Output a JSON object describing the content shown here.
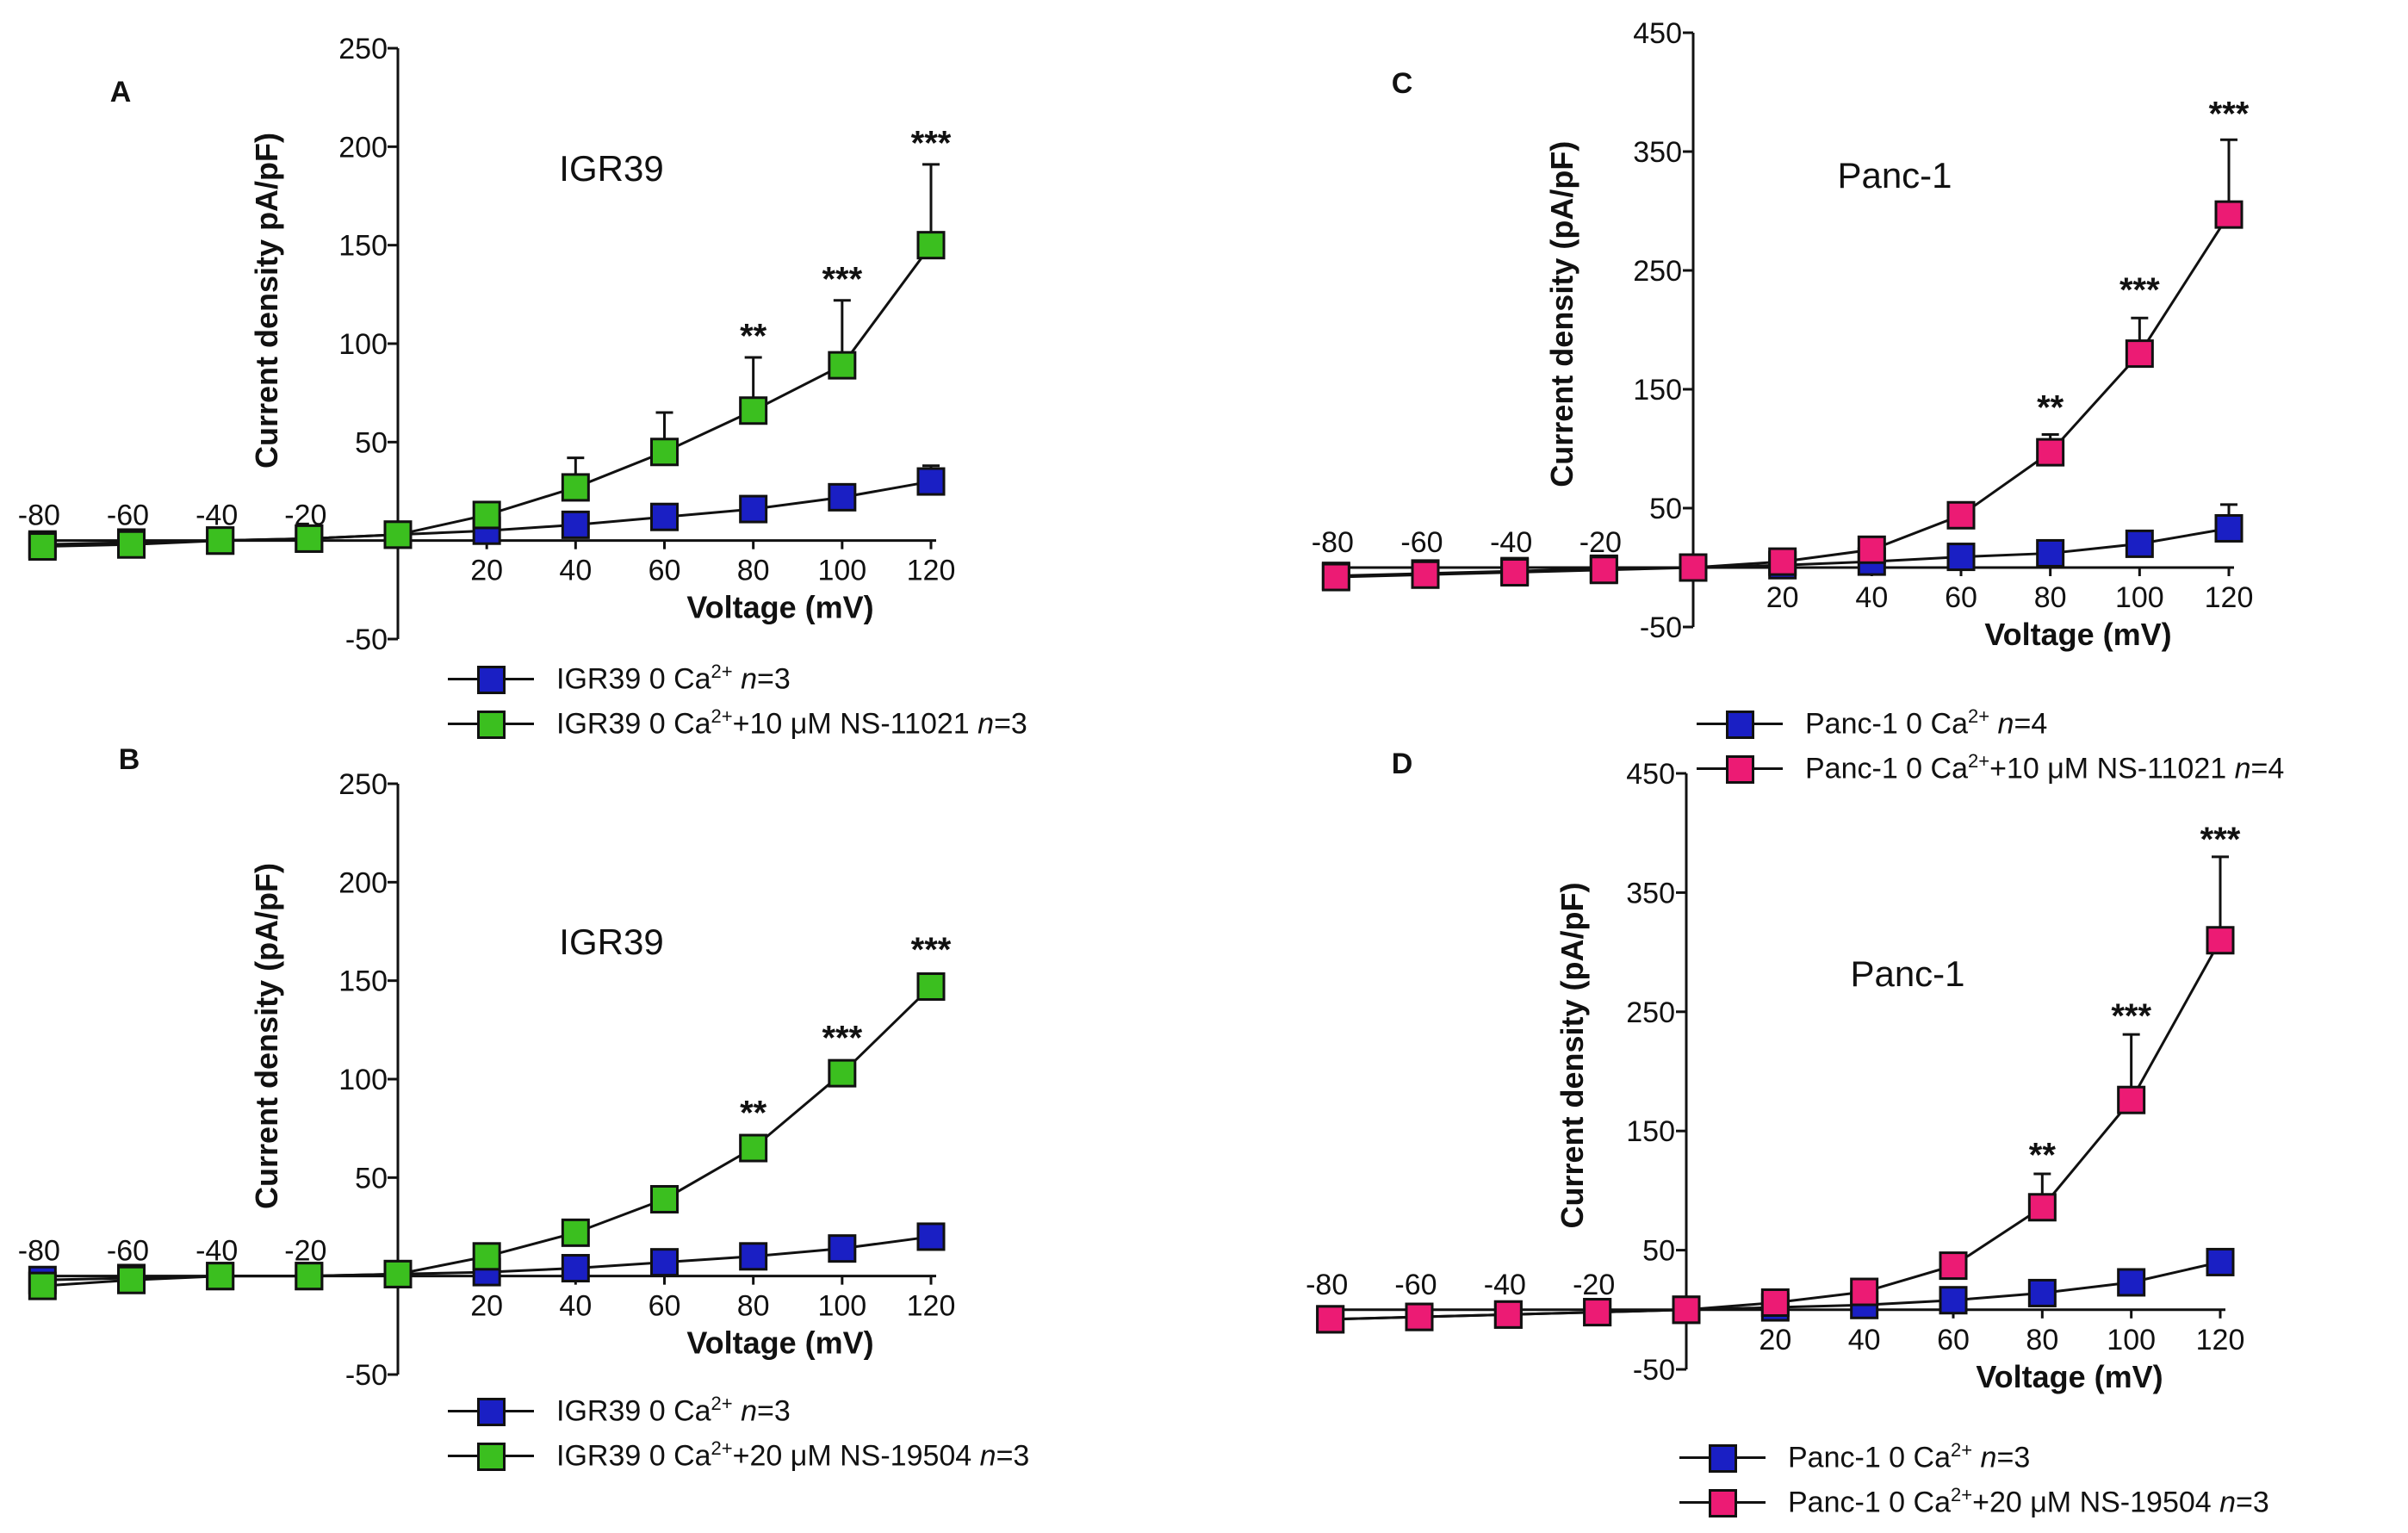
{
  "colors": {
    "blue": "#1a1fc4",
    "green": "#3bbf1f",
    "pink": "#ec1b74",
    "axis": "#111111"
  },
  "chart_data": [
    {
      "id": "A",
      "panel_label": "A",
      "type": "line",
      "title": "IGR39",
      "xlabel": "Voltage (mV)",
      "ylabel": "Current density pA/pF)",
      "xlim": [
        -80,
        120
      ],
      "ylim": [
        -50,
        250
      ],
      "x_ticks": [
        "-80",
        "-60",
        "-40",
        "-20",
        "20",
        "40",
        "60",
        "80",
        "100",
        "120"
      ],
      "y_ticks": [
        "250",
        "200",
        "150",
        "100",
        "50",
        "-50"
      ],
      "y_tick_values": [
        250,
        200,
        150,
        100,
        50,
        -50
      ],
      "series": [
        {
          "name": "IGR39 0 Ca2+ n=3",
          "color": "blue",
          "x": [
            -80,
            -60,
            -40,
            -20,
            0,
            20,
            40,
            60,
            80,
            100,
            120
          ],
          "y": [
            -2,
            -1,
            0,
            1,
            3,
            5,
            8,
            12,
            16,
            22,
            30
          ],
          "err": [
            0,
            0,
            0,
            0,
            0,
            0,
            0,
            0,
            0,
            0,
            8
          ]
        },
        {
          "name": "IGR39 0 Ca2+ +10 µM NS-11021 n=3",
          "color": "green",
          "x": [
            -80,
            -60,
            -40,
            -20,
            0,
            20,
            40,
            60,
            80,
            100,
            120
          ],
          "y": [
            -3,
            -2,
            0,
            1,
            3,
            13,
            27,
            45,
            66,
            89,
            150
          ],
          "err": [
            0,
            0,
            0,
            0,
            0,
            0,
            15,
            20,
            27,
            33,
            41
          ]
        }
      ],
      "annotations": [
        {
          "x": 80,
          "y": 98,
          "text": "**"
        },
        {
          "x": 100,
          "y": 127,
          "text": "***"
        },
        {
          "x": 120,
          "y": 196,
          "text": "***"
        }
      ],
      "legend": [
        {
          "prefix": "IGR39 0 Ca",
          "sup": "2+",
          "suffix": " ",
          "n": "=3",
          "color": "blue"
        },
        {
          "prefix": "IGR39 0 Ca",
          "sup": "2+",
          "suffix": "+10 μM NS-11021 ",
          "n": "=3",
          "color": "green"
        }
      ]
    },
    {
      "id": "B",
      "panel_label": "B",
      "type": "line",
      "title": "IGR39",
      "xlabel": "Voltage (mV)",
      "ylabel": "Current density (pA/pF)",
      "xlim": [
        -80,
        120
      ],
      "ylim": [
        -50,
        250
      ],
      "x_ticks": [
        "-80",
        "-60",
        "-40",
        "-20",
        "20",
        "40",
        "60",
        "80",
        "100",
        "120"
      ],
      "y_ticks": [
        "250",
        "200",
        "150",
        "100",
        "50",
        "-50"
      ],
      "y_tick_values": [
        250,
        200,
        150,
        100,
        50,
        -50
      ],
      "series": [
        {
          "name": "IGR39 0 Ca2+ n=3",
          "color": "blue",
          "x": [
            -80,
            -60,
            -40,
            -20,
            0,
            20,
            40,
            60,
            80,
            100,
            120
          ],
          "y": [
            -2,
            -1,
            0,
            0,
            1,
            2,
            4,
            7,
            10,
            14,
            20
          ],
          "err": [
            0,
            0,
            0,
            0,
            0,
            0,
            0,
            0,
            0,
            0,
            0
          ]
        },
        {
          "name": "IGR39 0 Ca2+ +20 µM NS-19504 n=3",
          "color": "green",
          "x": [
            -80,
            -60,
            -40,
            -20,
            0,
            20,
            40,
            60,
            80,
            100,
            120
          ],
          "y": [
            -5,
            -2,
            0,
            0,
            1,
            10,
            22,
            39,
            65,
            103,
            147
          ],
          "err": [
            0,
            0,
            0,
            0,
            0,
            0,
            0,
            0,
            0,
            0,
            0
          ]
        }
      ],
      "annotations": [
        {
          "x": 80,
          "y": 77,
          "text": "**"
        },
        {
          "x": 100,
          "y": 115,
          "text": "***"
        },
        {
          "x": 120,
          "y": 160,
          "text": "***"
        }
      ],
      "legend": [
        {
          "prefix": "IGR39 0 Ca",
          "sup": "2+",
          "suffix": " ",
          "n": "=3",
          "color": "blue"
        },
        {
          "prefix": "IGR39 0 Ca",
          "sup": "2+",
          "suffix": "+20 μM NS-19504 ",
          "n": "=3",
          "color": "green"
        }
      ]
    },
    {
      "id": "C",
      "panel_label": "C",
      "type": "line",
      "title": "Panc-1",
      "xlabel": "Voltage (mV)",
      "ylabel": "Current density (pA/pF)",
      "xlim": [
        -80,
        120
      ],
      "ylim": [
        -50,
        450
      ],
      "x_ticks": [
        "-80",
        "-60",
        "-40",
        "-20",
        "20",
        "40",
        "60",
        "80",
        "100",
        "120"
      ],
      "y_ticks": [
        "450",
        "350",
        "250",
        "150",
        "50",
        "-50"
      ],
      "y_tick_values": [
        450,
        350,
        250,
        150,
        50,
        -50
      ],
      "series": [
        {
          "name": "Panc-1 0 Ca2+ n=4",
          "color": "blue",
          "x": [
            -80,
            -60,
            -40,
            -20,
            0,
            20,
            40,
            60,
            80,
            100,
            120
          ],
          "y": [
            -7,
            -5,
            -3,
            -1,
            0,
            2,
            5,
            9,
            12,
            20,
            33
          ],
          "err": [
            0,
            0,
            0,
            0,
            0,
            0,
            0,
            0,
            0,
            10,
            20
          ]
        },
        {
          "name": "Panc-1 0 Ca2+ +10 µM NS-11021 n=4",
          "color": "pink",
          "x": [
            -80,
            -60,
            -40,
            -20,
            0,
            20,
            40,
            60,
            80,
            100,
            120
          ],
          "y": [
            -8,
            -6,
            -4,
            -2,
            0,
            5,
            15,
            44,
            97,
            180,
            297
          ],
          "err": [
            0,
            0,
            0,
            0,
            0,
            0,
            0,
            6,
            15,
            30,
            63
          ]
        }
      ],
      "annotations": [
        {
          "x": 80,
          "y": 125,
          "text": "**"
        },
        {
          "x": 100,
          "y": 224,
          "text": "***"
        },
        {
          "x": 120,
          "y": 372,
          "text": "***"
        }
      ],
      "legend": [
        {
          "prefix": "Panc-1 0 Ca",
          "sup": "2+",
          "suffix": " ",
          "n": "=4",
          "color": "blue"
        },
        {
          "prefix": "Panc-1 0 Ca",
          "sup": "2+",
          "suffix": "+10 μM NS-11021 ",
          "n": "=4",
          "color": "pink"
        }
      ]
    },
    {
      "id": "D",
      "panel_label": "D",
      "type": "line",
      "title": "Panc-1",
      "xlabel": "Voltage (mV)",
      "ylabel": "Current density (pA/pF)",
      "xlim": [
        -80,
        120
      ],
      "ylim": [
        -50,
        450
      ],
      "x_ticks": [
        "-80",
        "-60",
        "-40",
        "-20",
        "20",
        "40",
        "60",
        "80",
        "100",
        "120"
      ],
      "y_ticks": [
        "450",
        "350",
        "250",
        "150",
        "50",
        "-50"
      ],
      "y_tick_values": [
        450,
        350,
        250,
        150,
        50,
        -50
      ],
      "series": [
        {
          "name": "Panc-1 0 Ca2+ n=3",
          "color": "blue",
          "x": [
            -80,
            -60,
            -40,
            -20,
            0,
            20,
            40,
            60,
            80,
            100,
            120
          ],
          "y": [
            -8,
            -6,
            -4,
            -2,
            0,
            2,
            4,
            8,
            14,
            23,
            40
          ],
          "err": [
            0,
            0,
            0,
            0,
            0,
            0,
            0,
            0,
            0,
            0,
            0
          ]
        },
        {
          "name": "Panc-1 0 Ca2+ +20 µM NS-19504 n=3",
          "color": "pink",
          "x": [
            -80,
            -60,
            -40,
            -20,
            0,
            20,
            40,
            60,
            80,
            100,
            120
          ],
          "y": [
            -8,
            -6,
            -4,
            -2,
            0,
            6,
            15,
            37,
            86,
            176,
            310
          ],
          "err": [
            0,
            0,
            0,
            0,
            0,
            0,
            0,
            0,
            28,
            55,
            70
          ]
        }
      ],
      "annotations": [
        {
          "x": 80,
          "y": 120,
          "text": "**"
        },
        {
          "x": 100,
          "y": 237,
          "text": "***"
        },
        {
          "x": 120,
          "y": 385,
          "text": "***"
        }
      ],
      "legend": [
        {
          "prefix": "Panc-1 0 Ca",
          "sup": "2+",
          "suffix": " ",
          "n": "=3",
          "color": "blue"
        },
        {
          "prefix": "Panc-1 0 Ca",
          "sup": "2+",
          "suffix": "+20 μM NS-19504 ",
          "n": "=3",
          "color": "pink"
        }
      ]
    }
  ]
}
